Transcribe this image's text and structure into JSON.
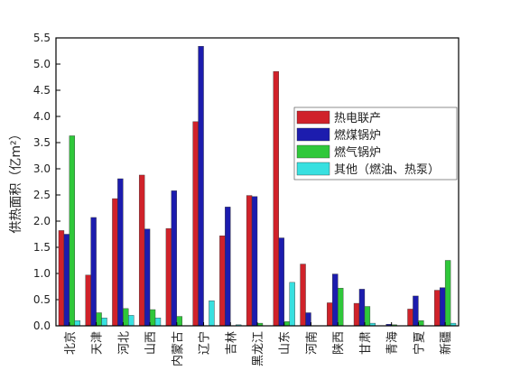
{
  "chart_data": {
    "type": "bar",
    "y_label": "供热面积（亿m²）",
    "categories": [
      "北京",
      "天津",
      "河北",
      "山西",
      "内蒙古",
      "辽宁",
      "吉林",
      "黑龙江",
      "山东",
      "河南",
      "陕西",
      "甘肃",
      "青海",
      "宁夏",
      "新疆"
    ],
    "series": [
      {
        "name": "热电联产",
        "color": "#d0222a",
        "values": [
          1.82,
          0.97,
          2.43,
          2.88,
          1.86,
          3.9,
          1.72,
          2.49,
          4.86,
          1.18,
          0.44,
          0.43,
          0,
          0.32,
          0.68
        ]
      },
      {
        "name": "燃煤锅炉",
        "color": "#1c1cae",
        "values": [
          1.75,
          2.07,
          2.81,
          1.85,
          2.58,
          5.34,
          2.27,
          2.47,
          1.68,
          0.25,
          0.99,
          0.7,
          0.03,
          0.57,
          0.73
        ]
      },
      {
        "name": "燃气锅炉",
        "color": "#2fc83a",
        "values": [
          3.63,
          0.25,
          0.33,
          0.31,
          0.18,
          0,
          0,
          0.05,
          0.08,
          0,
          0.72,
          0.37,
          0.02,
          0.1,
          1.25
        ]
      },
      {
        "name": "其他（燃油、热泵）",
        "color": "#38e0e0",
        "values": [
          0.1,
          0.15,
          0.2,
          0.15,
          0,
          0.48,
          0.02,
          0,
          0.83,
          0,
          0,
          0.05,
          0,
          0,
          0.05
        ]
      }
    ],
    "ylim": [
      0,
      5.5
    ],
    "yticks": [
      {
        "value": 0,
        "label": "0.0"
      },
      0.5,
      {
        "value": 1,
        "label": "1.0"
      },
      1.5,
      {
        "value": 2,
        "label": "2.0"
      },
      2.5,
      {
        "value": 3,
        "label": "3.0"
      },
      3.5,
      {
        "value": 4,
        "label": "4.0"
      },
      4.5,
      {
        "value": 5,
        "label": "5.0"
      },
      5.5
    ],
    "legend": "upper right"
  }
}
